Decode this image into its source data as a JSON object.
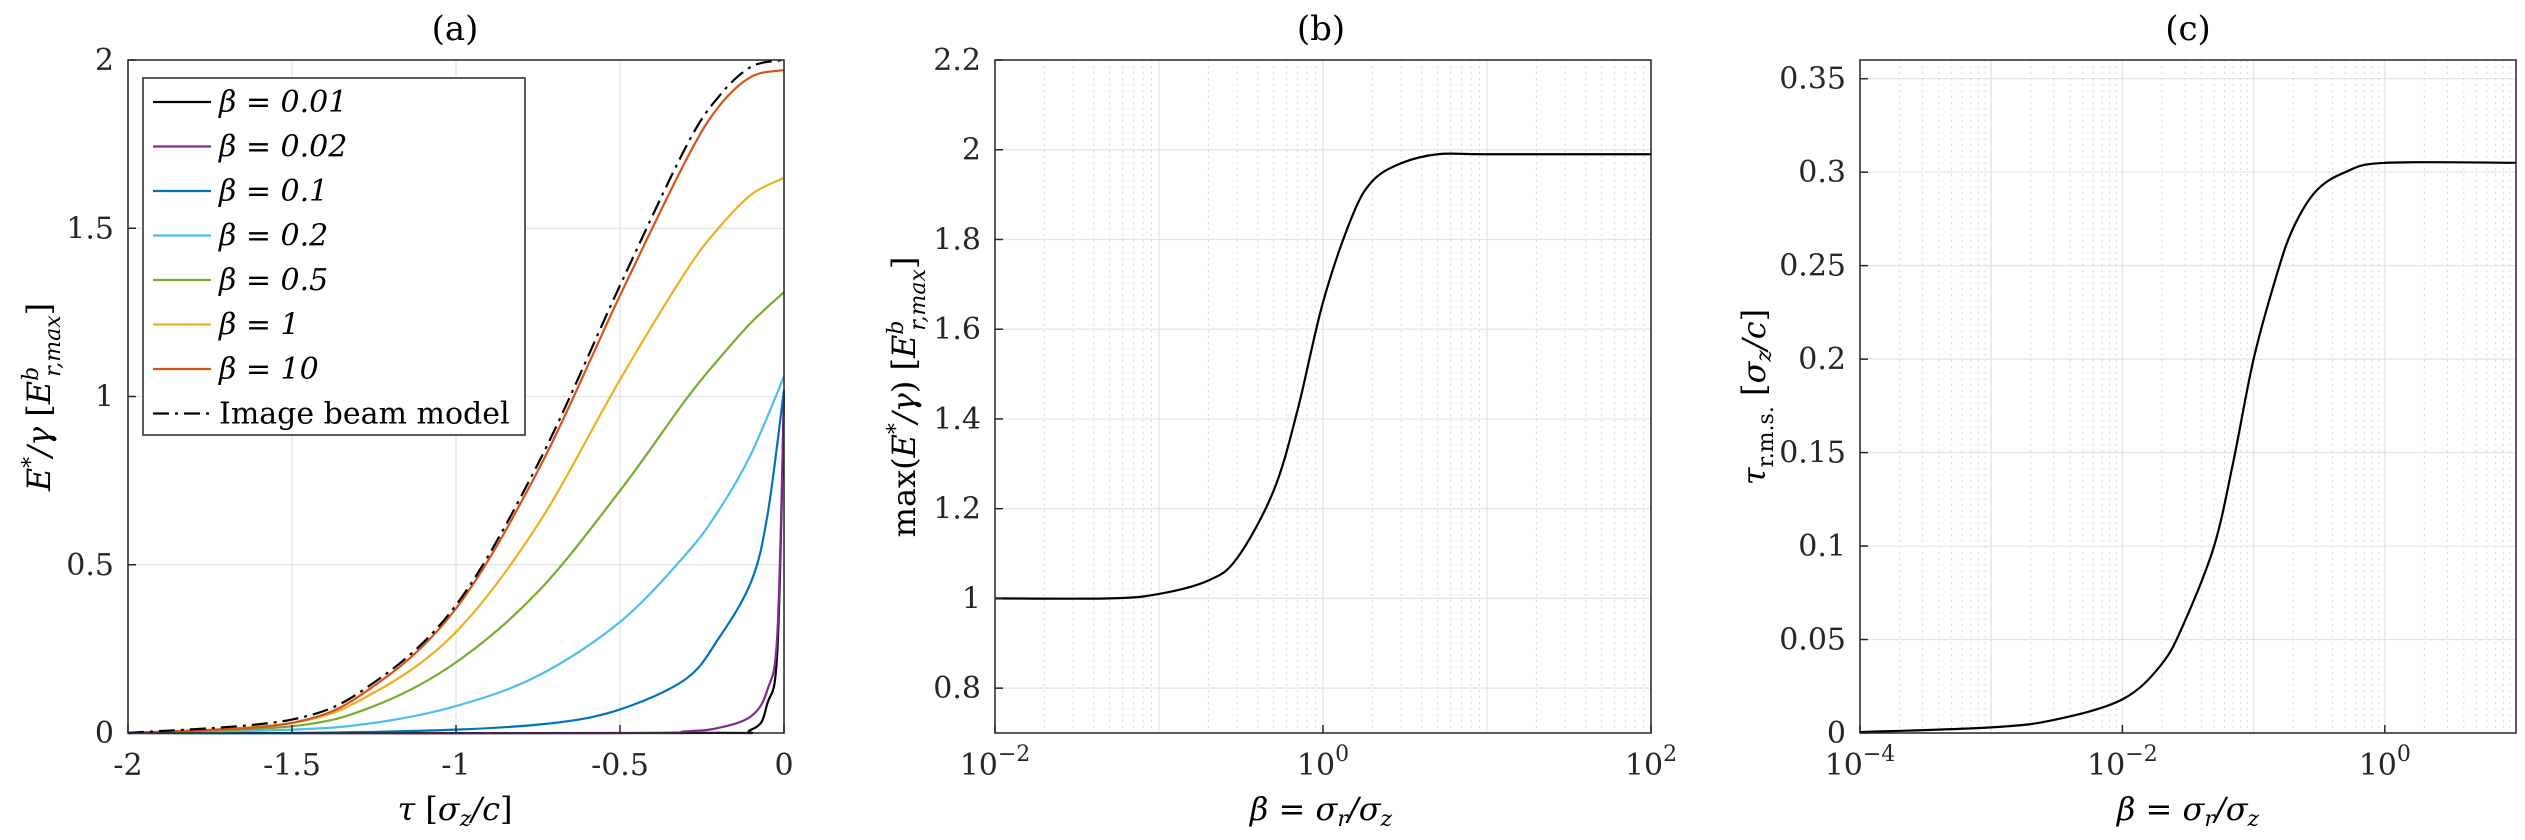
{
  "chart_data": [
    {
      "type": "line",
      "title": "(a)",
      "xlabel": "τ [σz/c]",
      "ylabel": "E*/γ [Eᵇr,max]",
      "xlim": [
        -2,
        0
      ],
      "ylim": [
        0,
        2
      ],
      "xticks": [
        -2,
        -1.5,
        -1,
        -0.5,
        0
      ],
      "xtick_labels": [
        "-2",
        "-1.5",
        "-1",
        "-0.5",
        "0"
      ],
      "yticks": [
        0,
        0.5,
        1,
        1.5,
        2
      ],
      "ytick_labels": [
        "0",
        "0.5",
        "1",
        "1.5",
        "2"
      ],
      "grid": true,
      "legend_position": "top-left",
      "series": [
        {
          "name": "β = 0.01",
          "color": "#000000",
          "dash": "none",
          "x": [
            -2,
            -0.3,
            -0.1,
            -0.05,
            -0.02,
            0
          ],
          "y": [
            0,
            0,
            0.01,
            0.09,
            0.25,
            1.0
          ]
        },
        {
          "name": "β = 0.02",
          "color": "#7E2F8E",
          "dash": "none",
          "x": [
            -2,
            -0.5,
            -0.3,
            -0.2,
            -0.1,
            -0.05,
            -0.02,
            0
          ],
          "y": [
            0,
            0,
            0.005,
            0.015,
            0.05,
            0.13,
            0.3,
            1.01
          ]
        },
        {
          "name": "β = 0.1",
          "color": "#0072BD",
          "dash": "none",
          "x": [
            -2,
            -1.5,
            -1,
            -0.7,
            -0.5,
            -0.3,
            -0.2,
            -0.1,
            -0.05,
            0
          ],
          "y": [
            0,
            0,
            0.01,
            0.03,
            0.07,
            0.16,
            0.28,
            0.45,
            0.65,
            1.02
          ]
        },
        {
          "name": "β = 0.2",
          "color": "#4DBEEE",
          "dash": "none",
          "x": [
            -2,
            -1.5,
            -1.25,
            -1,
            -0.75,
            -0.5,
            -0.3,
            -0.2,
            -0.1,
            0
          ],
          "y": [
            0,
            0.01,
            0.03,
            0.08,
            0.17,
            0.33,
            0.53,
            0.66,
            0.83,
            1.06
          ]
        },
        {
          "name": "β = 0.5",
          "color": "#77AC30",
          "dash": "none",
          "x": [
            -2,
            -1.5,
            -1.25,
            -1,
            -0.75,
            -0.5,
            -0.3,
            -0.2,
            -0.1,
            0
          ],
          "y": [
            0,
            0.02,
            0.08,
            0.21,
            0.42,
            0.72,
            0.99,
            1.11,
            1.22,
            1.31
          ]
        },
        {
          "name": "β = 1",
          "color": "#EDB120",
          "dash": "none",
          "x": [
            -2,
            -1.5,
            -1.25,
            -1,
            -0.75,
            -0.5,
            -0.3,
            -0.2,
            -0.1,
            0
          ],
          "y": [
            0,
            0.03,
            0.12,
            0.3,
            0.62,
            1.05,
            1.37,
            1.5,
            1.6,
            1.65
          ]
        },
        {
          "name": "β = 10",
          "color": "#D95319",
          "dash": "none",
          "x": [
            -2,
            -1.5,
            -1.25,
            -1,
            -0.75,
            -0.5,
            -0.3,
            -0.2,
            -0.1,
            0
          ],
          "y": [
            0,
            0.03,
            0.14,
            0.37,
            0.78,
            1.3,
            1.7,
            1.86,
            1.95,
            1.97
          ]
        },
        {
          "name": "Image beam model",
          "color": "#000000",
          "dash": "16 6 3 6",
          "x": [
            -2,
            -1.5,
            -1.25,
            -1,
            -0.75,
            -0.5,
            -0.3,
            -0.2,
            -0.1,
            0
          ],
          "y": [
            0,
            0.04,
            0.15,
            0.38,
            0.8,
            1.33,
            1.74,
            1.89,
            1.98,
            2.0
          ]
        }
      ]
    },
    {
      "type": "line",
      "title": "(b)",
      "xlabel": "β = σr/σz",
      "ylabel": "max(E*/γ) [Eᵇr,max]",
      "xscale": "log",
      "xlim": [
        0.01,
        100
      ],
      "ylim": [
        0.7,
        2.2
      ],
      "xticks": [
        0.01,
        1,
        100
      ],
      "xtick_labels": [
        "10",
        "10",
        "10"
      ],
      "xtick_exponents": [
        "−2",
        "0",
        "2"
      ],
      "yticks": [
        0.8,
        1,
        1.2,
        1.4,
        1.6,
        1.8,
        2,
        2.2
      ],
      "ytick_labels": [
        "0.8",
        "1",
        "1.2",
        "1.4",
        "1.6",
        "1.8",
        "2",
        "2.2"
      ],
      "grid": true,
      "series": [
        {
          "name": "",
          "color": "#000000",
          "x": [
            0.01,
            0.05,
            0.1,
            0.2,
            0.3,
            0.5,
            0.7,
            1,
            1.5,
            2,
            3,
            5,
            10,
            100
          ],
          "y": [
            1.0,
            1.0,
            1.01,
            1.04,
            1.09,
            1.24,
            1.42,
            1.66,
            1.85,
            1.93,
            1.97,
            1.99,
            1.99,
            1.99
          ]
        }
      ]
    },
    {
      "type": "line",
      "title": "(c)",
      "xlabel": "β = σr/σz",
      "ylabel": "τr.m.s. [σz/c]",
      "xscale": "log",
      "xlim": [
        0.0001,
        10
      ],
      "ylim": [
        0,
        0.36
      ],
      "xticks": [
        0.0001,
        0.01,
        1
      ],
      "xtick_labels": [
        "10",
        "10",
        "10"
      ],
      "xtick_exponents": [
        "−4",
        "−2",
        "0"
      ],
      "yticks": [
        0,
        0.05,
        0.1,
        0.15,
        0.2,
        0.25,
        0.3,
        0.35
      ],
      "ytick_labels": [
        "0",
        "0.05",
        "0.1",
        "0.15",
        "0.2",
        "0.25",
        "0.3",
        "0.35"
      ],
      "grid": true,
      "series": [
        {
          "name": "",
          "color": "#000000",
          "x": [
            0.0001,
            0.001,
            0.003,
            0.01,
            0.02,
            0.03,
            0.05,
            0.07,
            0.1,
            0.15,
            0.2,
            0.3,
            0.5,
            1,
            10
          ],
          "y": [
            0.0005,
            0.003,
            0.007,
            0.018,
            0.037,
            0.06,
            0.1,
            0.145,
            0.2,
            0.245,
            0.27,
            0.29,
            0.3,
            0.305,
            0.305
          ]
        }
      ]
    }
  ]
}
